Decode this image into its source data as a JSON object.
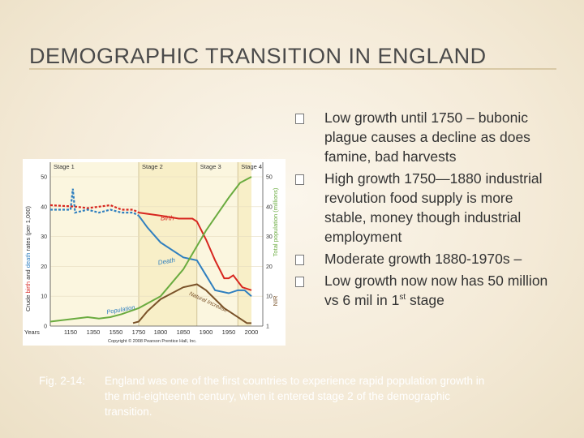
{
  "slide": {
    "title": "DEMOGRAPHIC TRANSITION IN ENGLAND",
    "bullets": [
      {
        "text": "Low growth until 1750 – bubonic plague causes a decline as does famine, bad harvests"
      },
      {
        "text": "High growth 1750—1880 industrial revolution food supply is more stable, money though industrial employment"
      },
      {
        "text": "Moderate growth 1880-1970s –"
      },
      {
        "text_before": "Low growth now now has 50 million vs 6 mil in 1",
        "sup": "st",
        "text_after": " stage"
      }
    ],
    "caption": {
      "label": "Fig. 2-14:",
      "line1": "England was one of the first countries to experience rapid population growth in",
      "line2": "the mid-eighteenth century, when it entered stage 2 of the demographic",
      "line3": "transition."
    }
  },
  "chart_data": {
    "type": "line",
    "stages": [
      {
        "label": "Stage 1",
        "from": 1100,
        "to": 1750
      },
      {
        "label": "Stage 2",
        "from": 1750,
        "to": 1880
      },
      {
        "label": "Stage 3",
        "from": 1880,
        "to": 1970
      },
      {
        "label": "Stage 4",
        "from": 1970,
        "to": 2000
      }
    ],
    "x_ticks": [
      {
        "label": "Years",
        "value": 1100
      },
      {
        "label": "1150",
        "value": 1150
      },
      {
        "label": "1350",
        "value": 1350
      },
      {
        "label": "1550",
        "value": 1550
      },
      {
        "label": "1750",
        "value": 1750
      },
      {
        "label": "1800",
        "value": 1800
      },
      {
        "label": "1850",
        "value": 1850
      },
      {
        "label": "1900",
        "value": 1900
      },
      {
        "label": "1950",
        "value": 1950
      },
      {
        "label": "2000",
        "value": 2000
      }
    ],
    "yleft_ticks": [
      "0",
      "10",
      "20",
      "30",
      "40",
      "50"
    ],
    "yright_ticks": [
      "1",
      "10",
      "20",
      "30",
      "40",
      "50"
    ],
    "ylim": [
      0,
      50
    ],
    "ylabel_left_prefix": "Crude ",
    "ylabel_left_birth": "birth",
    "ylabel_left_and": " and ",
    "ylabel_left_death": "death",
    "ylabel_left_suffix": " rates (per 1,000)",
    "ylabel_right": "Total population (millions)",
    "ylabel_right_sub": "NIR",
    "copyright": "Copyright © 2008 Pearson Prentice Hall, Inc.",
    "series": [
      {
        "name": "Birth",
        "color": "#d7261f",
        "points": [
          [
            1100,
            40.5
          ],
          [
            1200,
            40
          ],
          [
            1300,
            39.5
          ],
          [
            1400,
            40
          ],
          [
            1500,
            40.5
          ],
          [
            1600,
            39
          ],
          [
            1700,
            39
          ],
          [
            1750,
            38
          ],
          [
            1800,
            37
          ],
          [
            1840,
            36
          ],
          [
            1870,
            36
          ],
          [
            1880,
            35
          ],
          [
            1900,
            29
          ],
          [
            1920,
            22
          ],
          [
            1940,
            16
          ],
          [
            1950,
            16
          ],
          [
            1960,
            17
          ],
          [
            1970,
            15
          ],
          [
            1980,
            13
          ],
          [
            2000,
            12
          ]
        ]
      },
      {
        "name": "Death",
        "color": "#2f7fbf",
        "points": [
          [
            1100,
            39
          ],
          [
            1150,
            39
          ],
          [
            1170,
            46
          ],
          [
            1190,
            38
          ],
          [
            1300,
            39
          ],
          [
            1400,
            38
          ],
          [
            1500,
            39
          ],
          [
            1600,
            38
          ],
          [
            1700,
            38
          ],
          [
            1750,
            37
          ],
          [
            1770,
            33
          ],
          [
            1800,
            28
          ],
          [
            1850,
            23
          ],
          [
            1880,
            22
          ],
          [
            1900,
            17
          ],
          [
            1920,
            12
          ],
          [
            1950,
            11
          ],
          [
            1970,
            12
          ],
          [
            1985,
            12
          ],
          [
            2000,
            10
          ]
        ]
      },
      {
        "name": "Population",
        "color": "#6aab3f",
        "points": [
          [
            1100,
            1.5
          ],
          [
            1300,
            3
          ],
          [
            1400,
            2.5
          ],
          [
            1500,
            3
          ],
          [
            1600,
            4
          ],
          [
            1750,
            6
          ],
          [
            1800,
            10
          ],
          [
            1850,
            19
          ],
          [
            1900,
            32
          ],
          [
            1950,
            43
          ],
          [
            1975,
            48
          ],
          [
            2000,
            50
          ]
        ]
      },
      {
        "name": "Natural Increase",
        "color": "#7a5229",
        "points": [
          [
            1700,
            1
          ],
          [
            1750,
            1.5
          ],
          [
            1770,
            5
          ],
          [
            1800,
            9
          ],
          [
            1850,
            13
          ],
          [
            1880,
            14
          ],
          [
            1900,
            12
          ],
          [
            1920,
            9
          ],
          [
            1940,
            6
          ],
          [
            1950,
            5
          ],
          [
            1970,
            3
          ],
          [
            1990,
            1
          ],
          [
            2000,
            1
          ]
        ]
      }
    ]
  }
}
